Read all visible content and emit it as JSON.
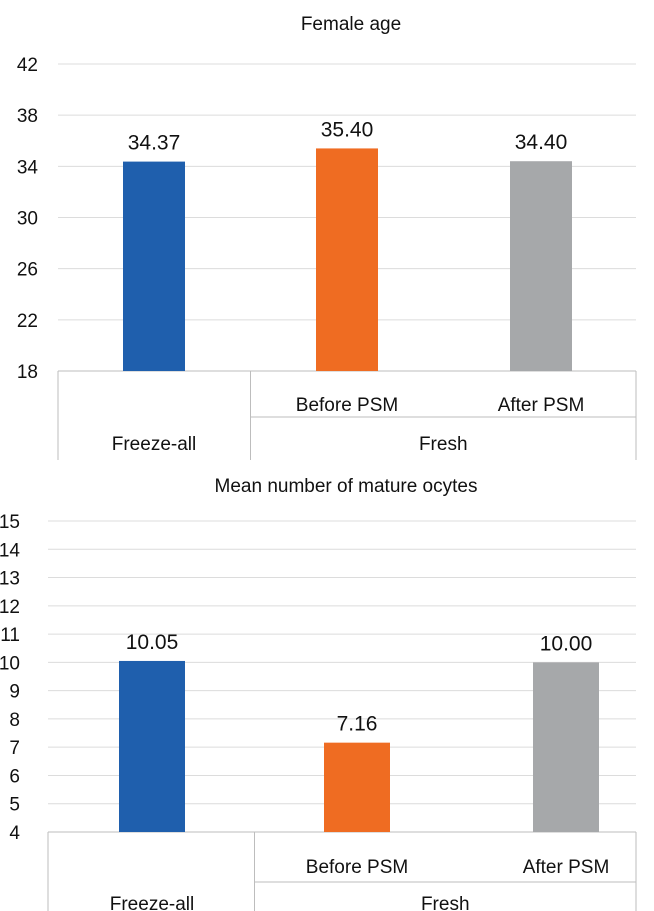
{
  "chart_data": [
    {
      "type": "bar",
      "title": "Female age",
      "categories": [
        "Freeze-all",
        "Before PSM",
        "After PSM"
      ],
      "groups": [
        {
          "label": "Freeze-all",
          "categories": [
            "Freeze-all"
          ]
        },
        {
          "label": "Fresh",
          "categories": [
            "Before PSM",
            "After PSM"
          ]
        }
      ],
      "values": [
        34.37,
        35.4,
        34.4
      ],
      "value_labels": [
        "34.37",
        "35.40",
        "34.40"
      ],
      "colors": [
        "#1f5fad",
        "#ef6c22",
        "#a6a8aa"
      ],
      "yticks": [
        "18",
        "22",
        "26",
        "30",
        "34",
        "38",
        "42"
      ],
      "ylim": [
        18,
        42
      ],
      "grid": true
    },
    {
      "type": "bar",
      "title": "Mean number of mature ocytes",
      "categories": [
        "Freeze-all",
        "Before PSM",
        "After PSM"
      ],
      "groups": [
        {
          "label": "Freeze-all",
          "categories": [
            "Freeze-all"
          ]
        },
        {
          "label": "Fresh",
          "categories": [
            "Before PSM",
            "After PSM"
          ]
        }
      ],
      "values": [
        10.05,
        7.16,
        10.0
      ],
      "value_labels": [
        "10.05",
        "7.16",
        "10.00"
      ],
      "colors": [
        "#1f5fad",
        "#ef6c22",
        "#a6a8aa"
      ],
      "yticks": [
        "4",
        "5",
        "6",
        "7",
        "8",
        "9",
        "10",
        "11",
        "12",
        "13",
        "14",
        "15"
      ],
      "ylim": [
        4,
        15
      ],
      "grid": true
    }
  ]
}
